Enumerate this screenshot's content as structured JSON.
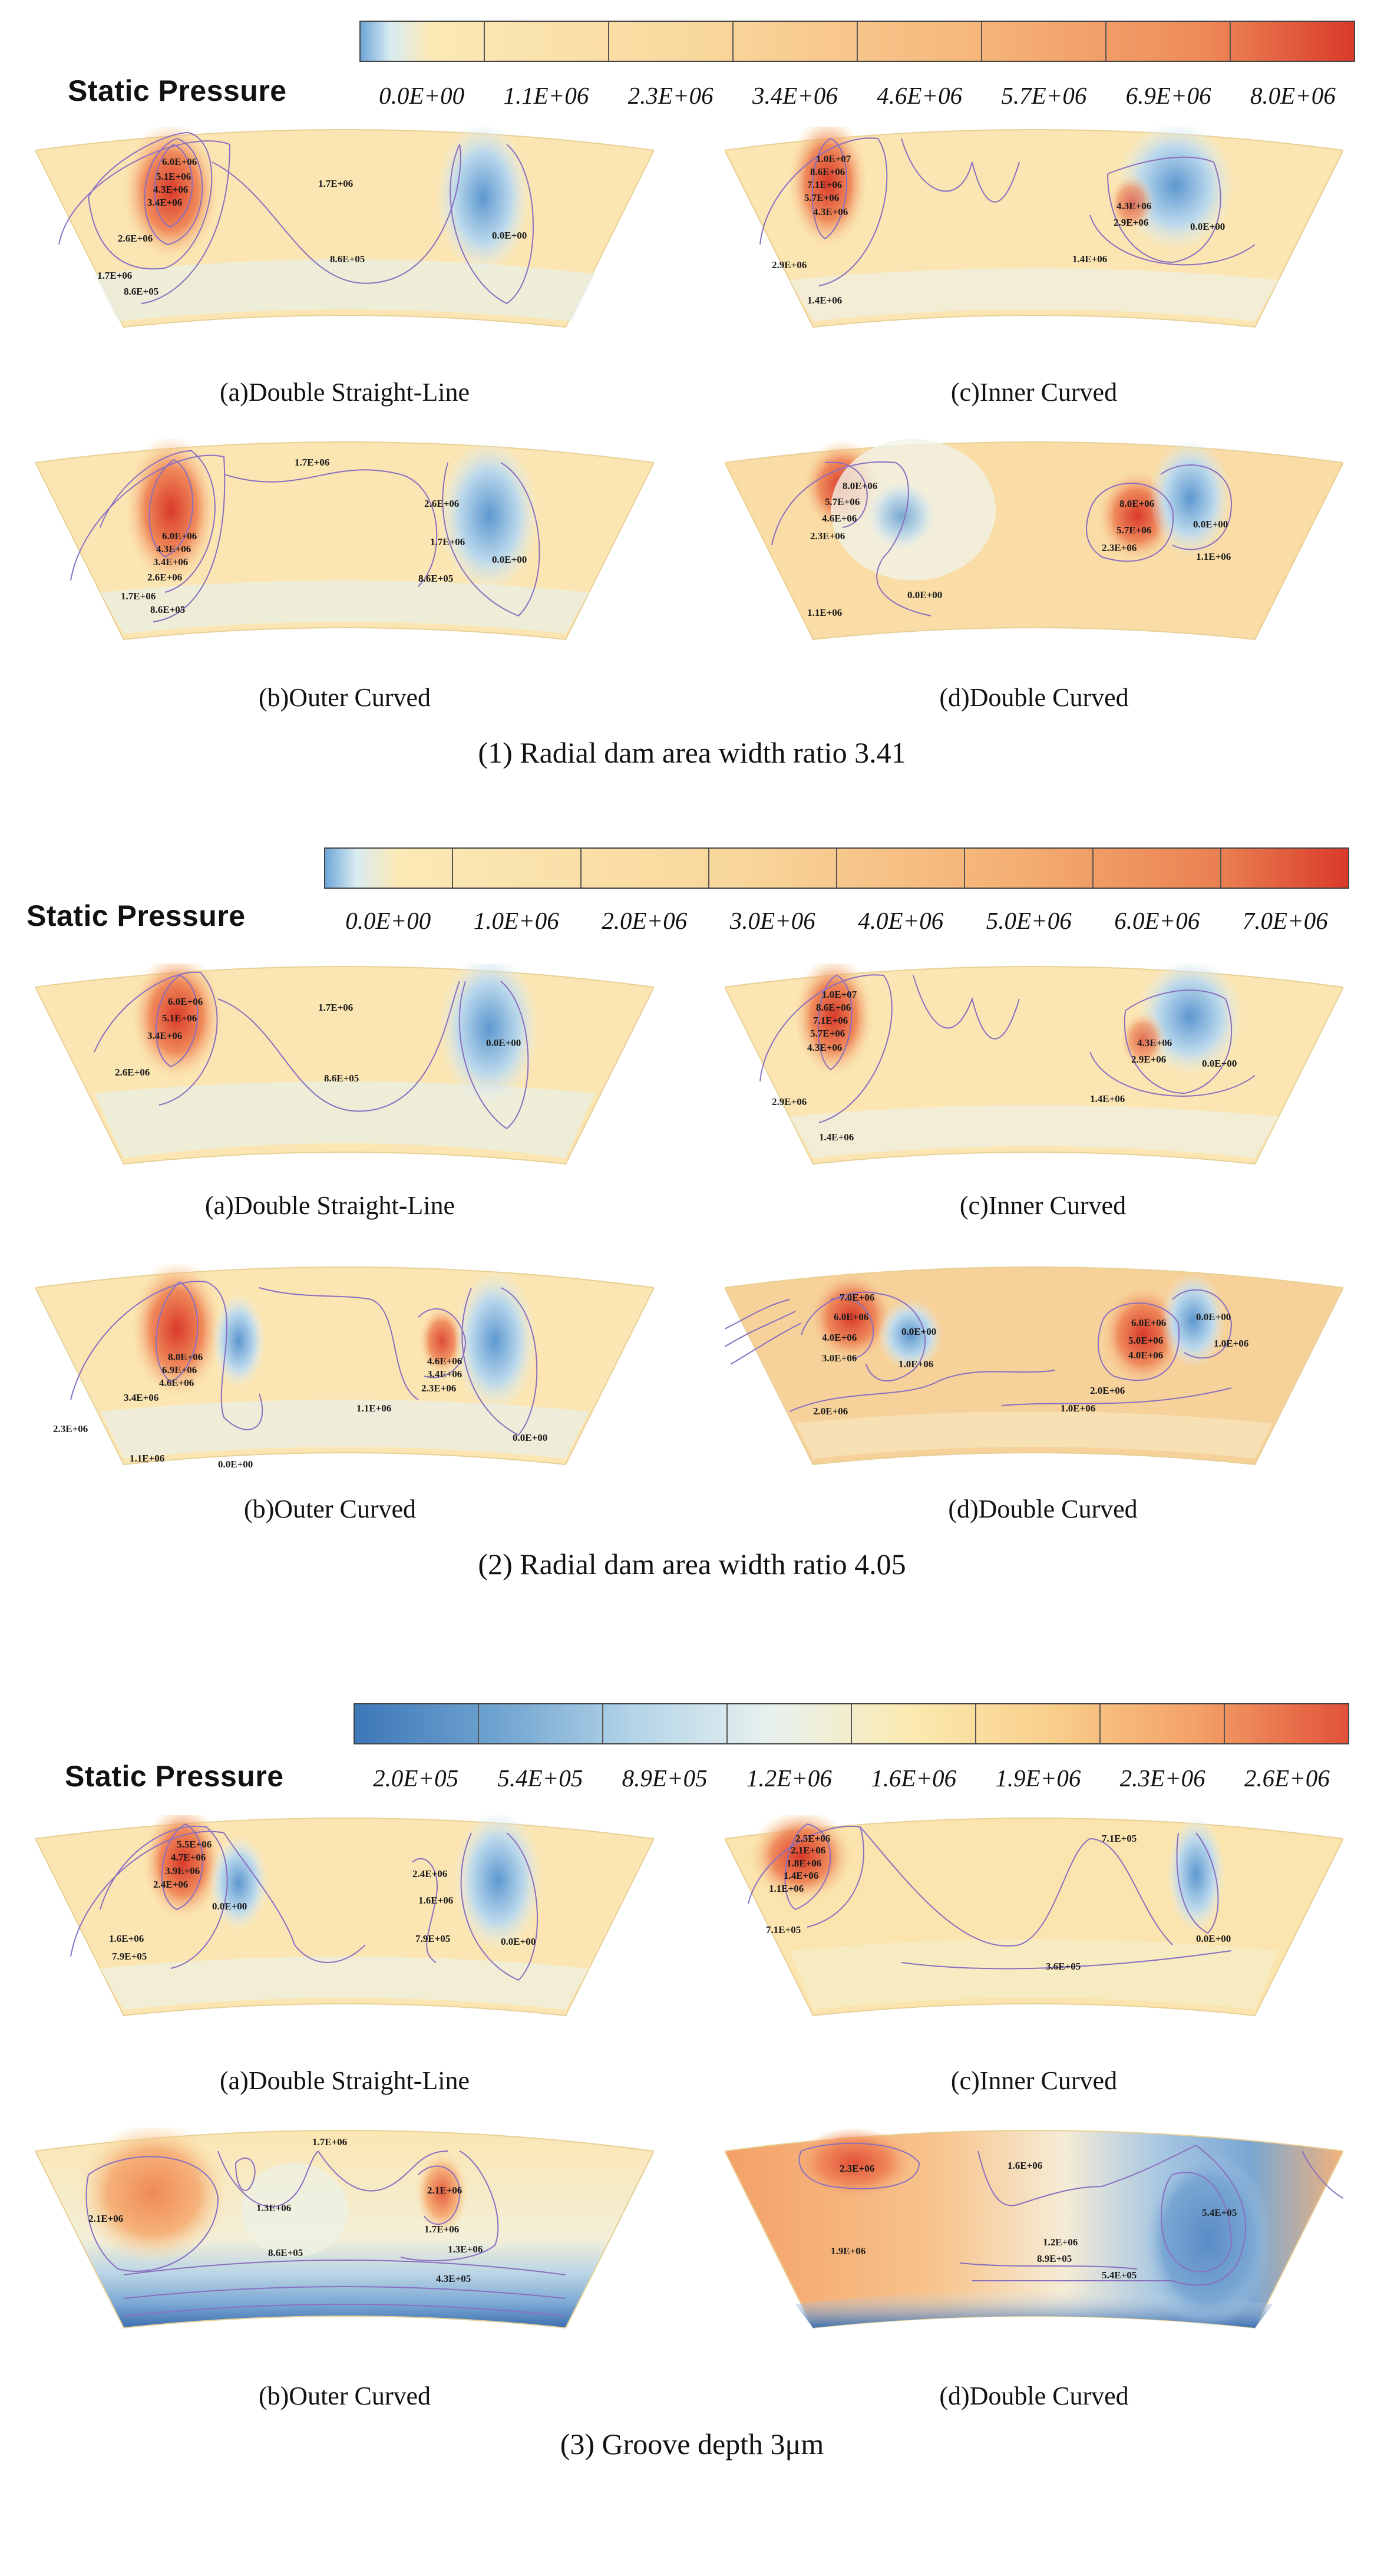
{
  "sections": [
    {
      "title": "Static Pressure",
      "colorbar_ticks": [
        "0.0E+00",
        "1.1E+06",
        "2.3E+06",
        "3.4E+06",
        "4.6E+06",
        "5.7E+06",
        "6.9E+06",
        "8.0E+06"
      ],
      "caption": "(1) Radial dam area width ratio 3.41",
      "panels": [
        {
          "caption": "(a)Double Straight-Line",
          "labels": [
            "6.0E+06",
            "5.1E+06",
            "4.3E+06",
            "3.4E+06",
            "2.6E+06",
            "1.7E+06",
            "8.6E+05",
            "1.7E+06",
            "8.6E+05",
            "0.0E+00"
          ]
        },
        {
          "caption": "(c)Inner Curved",
          "labels": [
            "1.0E+07",
            "8.6E+06",
            "7.1E+06",
            "5.7E+06",
            "4.3E+06",
            "2.9E+06",
            "1.4E+06",
            "4.3E+06",
            "2.9E+06",
            "1.4E+06",
            "0.0E+00"
          ]
        },
        {
          "caption": "(b)Outer Curved",
          "labels": [
            "6.0E+06",
            "4.3E+06",
            "3.4E+06",
            "2.6E+06",
            "1.7E+06",
            "8.6E+05",
            "1.7E+06",
            "2.6E+06",
            "1.7E+06",
            "8.6E+05",
            "0.0E+00"
          ]
        },
        {
          "caption": "(d)Double Curved",
          "labels": [
            "8.0E+06",
            "5.7E+06",
            "4.6E+06",
            "2.3E+06",
            "1.1E+06",
            "0.0E+00",
            "8.0E+06",
            "5.7E+06",
            "2.3E+06",
            "0.0E+00",
            "1.1E+06"
          ]
        }
      ]
    },
    {
      "title": "Static Pressure",
      "colorbar_ticks": [
        "0.0E+00",
        "1.0E+06",
        "2.0E+06",
        "3.0E+06",
        "4.0E+06",
        "5.0E+06",
        "6.0E+06",
        "7.0E+06"
      ],
      "caption": "(2) Radial dam area width ratio 4.05",
      "panels": [
        {
          "caption": "(a)Double Straight-Line",
          "labels": [
            "6.0E+06",
            "5.1E+06",
            "3.4E+06",
            "2.6E+06",
            "1.7E+06",
            "8.6E+05",
            "0.0E+00"
          ]
        },
        {
          "caption": "(c)Inner Curved",
          "labels": [
            "1.0E+07",
            "8.6E+06",
            "7.1E+06",
            "5.7E+06",
            "4.3E+06",
            "2.9E+06",
            "1.4E+06",
            "4.3E+06",
            "2.9E+06",
            "1.4E+06",
            "0.0E+00"
          ]
        },
        {
          "caption": "(b)Outer Curved",
          "labels": [
            "8.0E+06",
            "6.9E+06",
            "4.6E+06",
            "3.4E+06",
            "2.3E+06",
            "1.1E+06",
            "0.0E+00",
            "4.6E+06",
            "3.4E+06",
            "2.3E+06",
            "1.1E+06",
            "0.0E+00"
          ]
        },
        {
          "caption": "(d)Double Curved",
          "labels": [
            "7.0E+06",
            "6.0E+06",
            "4.0E+06",
            "3.0E+06",
            "0.0E+00",
            "1.0E+06",
            "2.0E+06",
            "6.0E+06",
            "5.0E+06",
            "4.0E+06",
            "0.0E+00",
            "1.0E+06",
            "2.0E+06",
            "1.0E+06"
          ]
        }
      ]
    },
    {
      "title": "Static Pressure",
      "colorbar_ticks": [
        "2.0E+05",
        "5.4E+05",
        "8.9E+05",
        "1.2E+06",
        "1.6E+06",
        "1.9E+06",
        "2.3E+06",
        "2.6E+06"
      ],
      "caption": "(3) Groove depth 3μm",
      "panels": [
        {
          "caption": "(a)Double Straight-Line",
          "labels": [
            "5.5E+06",
            "4.7E+06",
            "3.9E+06",
            "2.4E+06",
            "1.6E+06",
            "7.9E+05",
            "0.0E+00",
            "2.4E+06",
            "1.6E+06",
            "7.9E+05",
            "0.0E+00"
          ]
        },
        {
          "caption": "(c)Inner Curved",
          "labels": [
            "2.5E+06",
            "2.1E+06",
            "1.8E+06",
            "1.4E+06",
            "1.1E+06",
            "7.1E+05",
            "7.1E+05",
            "3.6E+05",
            "0.0E+00"
          ]
        },
        {
          "caption": "(b)Outer Curved",
          "labels": [
            "1.7E+06",
            "2.1E+06",
            "1.3E+06",
            "8.6E+05",
            "2.1E+06",
            "1.7E+06",
            "1.3E+06",
            "4.3E+05"
          ]
        },
        {
          "caption": "(d)Double Curved",
          "labels": [
            "2.3E+06",
            "1.6E+06",
            "1.9E+06",
            "1.2E+06",
            "8.9E+05",
            "5.4E+05",
            "5.4E+05"
          ]
        }
      ]
    }
  ],
  "colors": {
    "bar1_stops": [
      "#6fa6d8",
      "#fbe9b6",
      "#f9c987",
      "#f3a067",
      "#d93a2a"
    ],
    "bar3_stops": [
      "#3d77b8",
      "#9cc6e2",
      "#e8f1ee",
      "#fbeab0",
      "#f7b574",
      "#e2523a"
    ],
    "contour_line": "#8a6fc0"
  }
}
